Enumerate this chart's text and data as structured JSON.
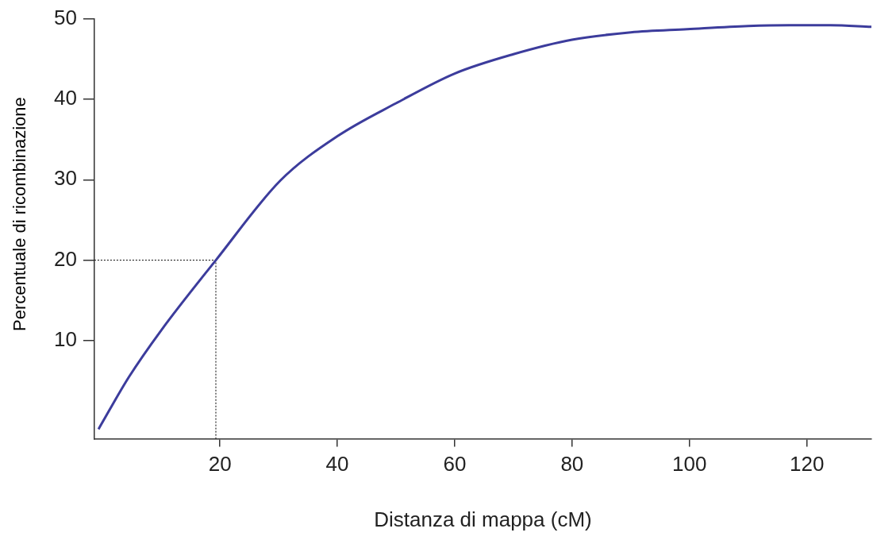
{
  "chart_data": {
    "type": "line",
    "xlabel": "Distanza di mappa (cM)",
    "ylabel": "Percentuale di ricombinazione",
    "xlim": [
      -1.4,
      131
    ],
    "ylim": [
      -2.2,
      50
    ],
    "xticks": [
      20,
      40,
      60,
      80,
      100,
      120
    ],
    "yticks": [
      10,
      20,
      30,
      40,
      50
    ],
    "grid": false,
    "series": [
      {
        "color": "#3c3c9c",
        "line_style": "solid",
        "x": [
          -0.7,
          4.5,
          10,
          19.3,
          30.3,
          40,
          50,
          60,
          70,
          80,
          90,
          99.6,
          110,
          117,
          124,
          131
        ],
        "values": [
          -1,
          5.5,
          11.3,
          20,
          29.9,
          35.4,
          39.5,
          43.2,
          45.6,
          47.4,
          48.3,
          48.7,
          49.1,
          49.2,
          49.2,
          49
        ]
      },
      {
        "color": "#000000",
        "line_style": "dotted",
        "x": [
          -1.4,
          19.3,
          19.3
        ],
        "values": [
          20,
          20,
          -2.2
        ]
      }
    ]
  }
}
